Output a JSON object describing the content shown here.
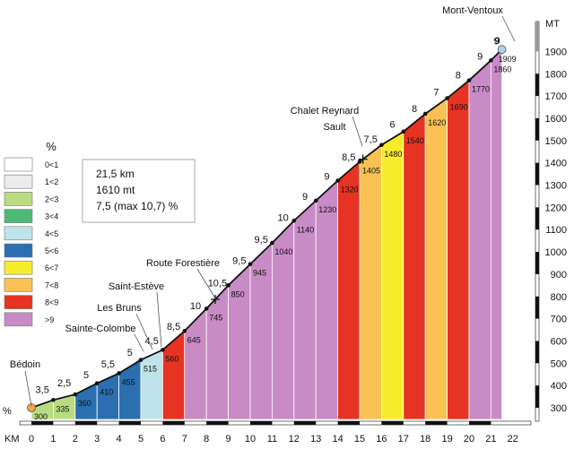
{
  "chart_data": {
    "type": "area",
    "title": "",
    "xlabel": "KM",
    "ylabel": "MT",
    "left_axis_label": "%",
    "xlim": [
      0,
      22
    ],
    "ylim": [
      250,
      1950
    ],
    "x_ticks": [
      0,
      1,
      2,
      3,
      4,
      5,
      6,
      7,
      8,
      9,
      10,
      11,
      12,
      13,
      14,
      15,
      16,
      17,
      18,
      19,
      20,
      21,
      22
    ],
    "y_ticks": [
      300,
      400,
      500,
      600,
      700,
      800,
      900,
      1000,
      1100,
      1200,
      1300,
      1400,
      1500,
      1600,
      1700,
      1800,
      1900
    ],
    "profile": [
      {
        "km": 0,
        "alt": 300,
        "label": "300"
      },
      {
        "km": 1,
        "alt": 335,
        "label": "335"
      },
      {
        "km": 2,
        "alt": 360,
        "label": "360"
      },
      {
        "km": 3,
        "alt": 410,
        "label": "410"
      },
      {
        "km": 4,
        "alt": 455,
        "label": "455"
      },
      {
        "km": 5,
        "alt": 515,
        "label": "515"
      },
      {
        "km": 6,
        "alt": 560,
        "label": "560"
      },
      {
        "km": 7,
        "alt": 645,
        "label": "645"
      },
      {
        "km": 8,
        "alt": 745,
        "label": "745"
      },
      {
        "km": 9,
        "alt": 850,
        "label": "850"
      },
      {
        "km": 10,
        "alt": 945,
        "label": "945"
      },
      {
        "km": 11,
        "alt": 1040,
        "label": "1040"
      },
      {
        "km": 12,
        "alt": 1140,
        "label": "1140"
      },
      {
        "km": 13,
        "alt": 1230,
        "label": "1230"
      },
      {
        "km": 14,
        "alt": 1320,
        "label": "1320"
      },
      {
        "km": 15,
        "alt": 1405,
        "label": "1405"
      },
      {
        "km": 16,
        "alt": 1480,
        "label": "1480"
      },
      {
        "km": 17,
        "alt": 1540,
        "label": "1540"
      },
      {
        "km": 18,
        "alt": 1620,
        "label": "1620"
      },
      {
        "km": 19,
        "alt": 1690,
        "label": "1690"
      },
      {
        "km": 20,
        "alt": 1770,
        "label": "1770"
      },
      {
        "km": 21,
        "alt": 1860,
        "label": "1860"
      },
      {
        "km": 21.5,
        "alt": 1909,
        "label": "1909"
      }
    ],
    "segment_gradients": [
      "3,5",
      "2,5",
      "5",
      "5,5",
      "5",
      "4,5",
      "8,5",
      "10",
      "10,5",
      "9,5",
      "9,5",
      "10",
      "9",
      "9",
      "8,5",
      "7,5",
      "6",
      "8",
      "7",
      "8",
      "9",
      "9"
    ],
    "segment_classes": [
      2,
      2,
      5,
      5,
      5,
      4,
      8,
      9,
      9,
      9,
      9,
      9,
      9,
      9,
      8,
      7,
      6,
      8,
      7,
      8,
      9,
      9
    ],
    "legend": {
      "title": "%",
      "items": [
        {
          "label": "0<1",
          "color": "#ffffff"
        },
        {
          "label": "1<2",
          "color": "#ececec"
        },
        {
          "label": "2<3",
          "color": "#b9dc82"
        },
        {
          "label": "3<4",
          "color": "#4fb978"
        },
        {
          "label": "4<5",
          "color": "#bfe3ea"
        },
        {
          "label": "5<6",
          "color": "#2b6fb0"
        },
        {
          "label": "6<7",
          "color": "#f7ec2c"
        },
        {
          "label": "7<8",
          "color": "#fac155"
        },
        {
          "label": "8<9",
          "color": "#e63323"
        },
        {
          "label": ">9",
          "color": "#c98bc6"
        }
      ]
    },
    "summary": [
      "21,5 km",
      "1610 mt",
      "7,5 (max 10,7) %"
    ],
    "places": [
      {
        "name": "Bédoin",
        "km": 0
      },
      {
        "name": "Sainte-Colombe",
        "km": 5
      },
      {
        "name": "Les Bruns",
        "km": 5.4
      },
      {
        "name": "Saint-Estève",
        "km": 5.85
      },
      {
        "name": "Route Forestière",
        "km": 8.4
      },
      {
        "name": "Sault",
        "km": 15
      },
      {
        "name": "Chalet Reynard",
        "km": 15.15
      },
      {
        "name": "Mont-Ventoux",
        "km": 21.5
      }
    ],
    "summit_gradient": "9",
    "grid": false,
    "legend_position": "left"
  }
}
